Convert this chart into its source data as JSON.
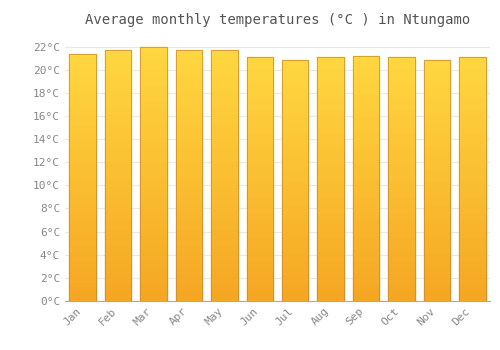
{
  "title": "Average monthly temperatures (°C ) in Ntungamo",
  "months": [
    "Jan",
    "Feb",
    "Mar",
    "Apr",
    "May",
    "Jun",
    "Jul",
    "Aug",
    "Sep",
    "Oct",
    "Nov",
    "Dec"
  ],
  "values": [
    21.4,
    21.7,
    22.0,
    21.7,
    21.7,
    21.1,
    20.8,
    21.1,
    21.2,
    21.1,
    20.8,
    21.1
  ],
  "ylim": [
    0,
    23
  ],
  "yticks": [
    0,
    2,
    4,
    6,
    8,
    10,
    12,
    14,
    16,
    18,
    20,
    22
  ],
  "bar_color_bottom": "#F5A623",
  "bar_color_top": "#FFD740",
  "bar_edge_color": "#C8892A",
  "background_color": "#FFFFFF",
  "plot_bg_color": "#FFFFFF",
  "grid_color": "#E8E8E8",
  "title_fontsize": 10,
  "tick_fontsize": 8,
  "title_color": "#555555",
  "tick_color": "#888888",
  "bar_width": 0.75
}
